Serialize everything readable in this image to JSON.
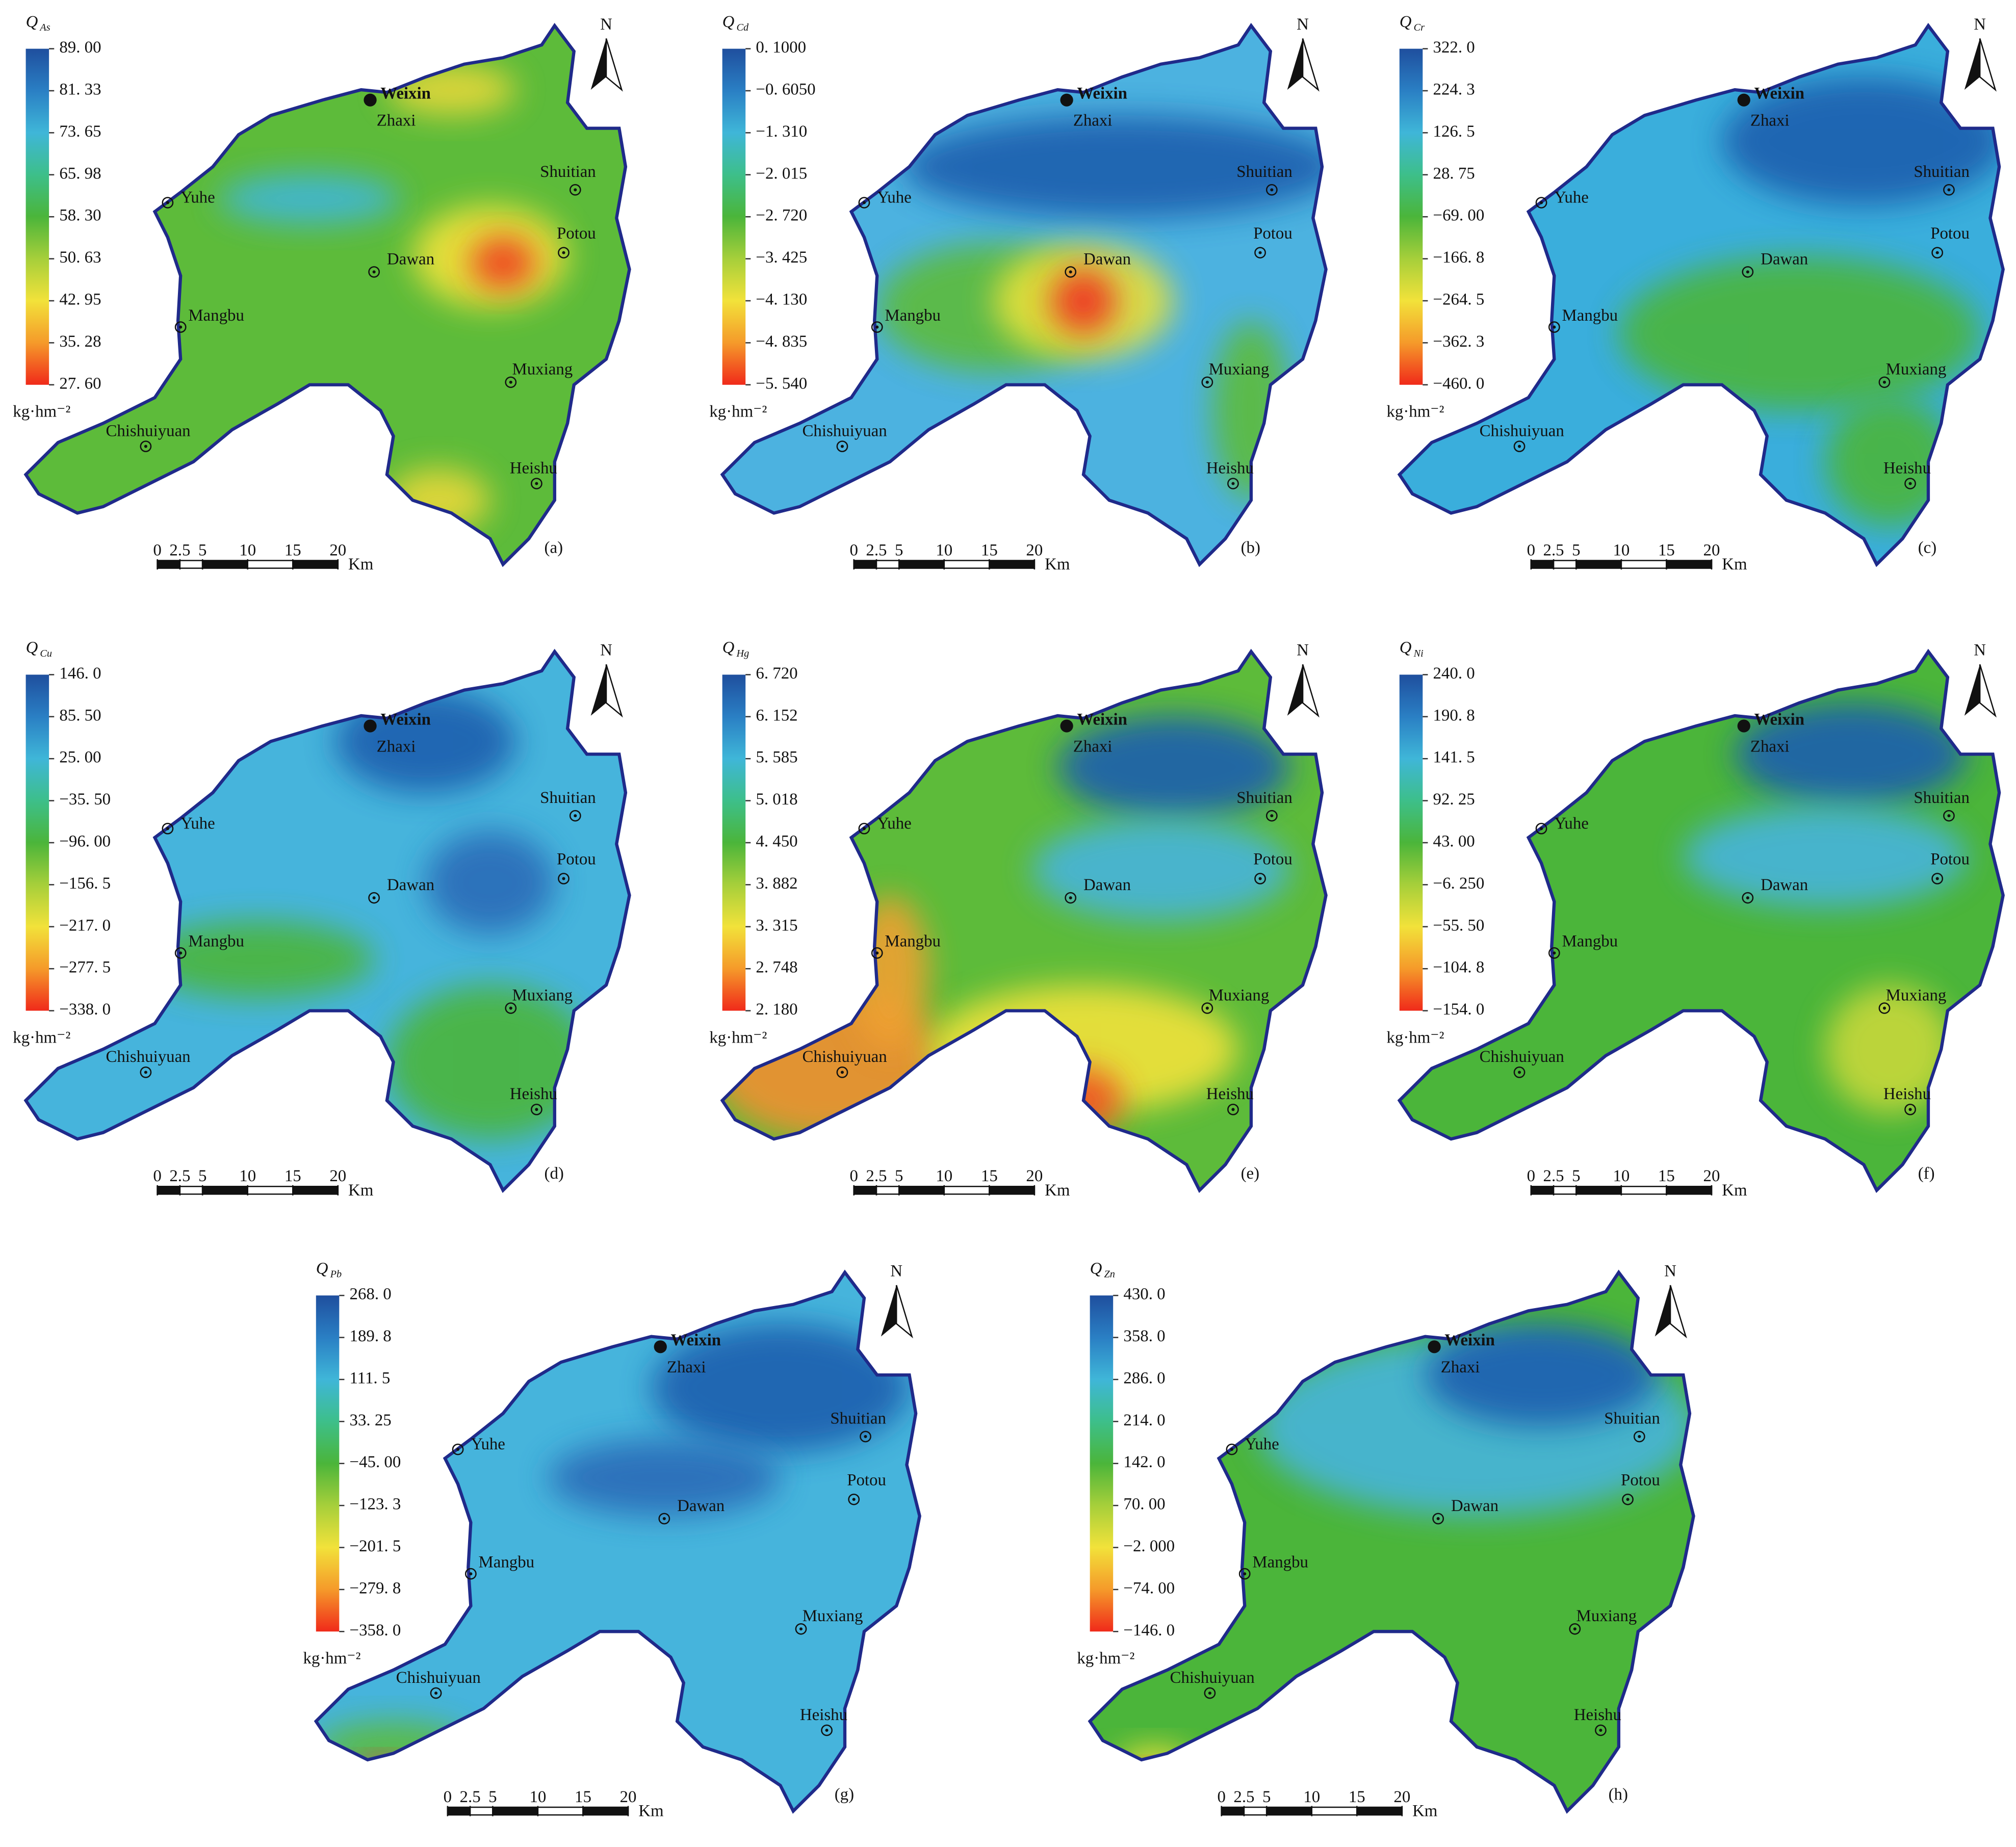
{
  "panels": [
    {
      "label": "(a)",
      "symbol": "Q",
      "subscript": "As",
      "legend_labels": [
        "89. 00",
        "81. 33",
        "73. 65",
        "65. 98",
        "58. 30",
        "50. 63",
        "42. 95",
        "35. 28",
        "27. 60"
      ]
    },
    {
      "label": "(b)",
      "symbol": "Q",
      "subscript": "Cd",
      "legend_labels": [
        "0. 1000",
        "−0. 6050",
        "−1. 310",
        "−2. 015",
        "−2. 720",
        "−3. 425",
        "−4. 130",
        "−4. 835",
        "−5. 540"
      ]
    },
    {
      "label": "(c)",
      "symbol": "Q",
      "subscript": "Cr",
      "legend_labels": [
        "322. 0",
        "224. 3",
        "126. 5",
        "28. 75",
        "−69. 00",
        "−166. 8",
        "−264. 5",
        "−362. 3",
        "−460. 0"
      ]
    },
    {
      "label": "(d)",
      "symbol": "Q",
      "subscript": "Cu",
      "legend_labels": [
        "146. 0",
        "85. 50",
        "25. 00",
        "−35. 50",
        "−96. 00",
        "−156. 5",
        "−217. 0",
        "−277. 5",
        "−338. 0"
      ]
    },
    {
      "label": "(e)",
      "symbol": "Q",
      "subscript": "Hg",
      "legend_labels": [
        "6. 720",
        "6. 152",
        "5. 585",
        "5. 018",
        "4. 450",
        "3. 882",
        "3. 315",
        "2. 748",
        "2. 180"
      ]
    },
    {
      "label": "(f)",
      "symbol": "Q",
      "subscript": "Ni",
      "legend_labels": [
        "240. 0",
        "190. 8",
        "141. 5",
        "92. 25",
        "43. 00",
        "−6. 250",
        "−55. 50",
        "−104. 8",
        "−154. 0"
      ]
    },
    {
      "label": "(g)",
      "symbol": "Q",
      "subscript": "Pb",
      "legend_labels": [
        "268. 0",
        "189. 8",
        "111. 5",
        "33. 25",
        "−45. 00",
        "−123. 3",
        "−201. 5",
        "−279. 8",
        "−358. 0"
      ]
    },
    {
      "label": "(h)",
      "symbol": "Q",
      "subscript": "Zn",
      "legend_labels": [
        "430. 0",
        "358. 0",
        "286. 0",
        "214. 0",
        "142. 0",
        "70. 00",
        "−2. 000",
        "−74. 00",
        "−146. 0"
      ]
    }
  ],
  "legend_unit": "kg·hm⁻²",
  "colormap": [
    "#1f4f9e",
    "#2a7fc4",
    "#3fb6d8",
    "#3dbf8a",
    "#4bb53a",
    "#a6cf3a",
    "#f2e23a",
    "#f59a2a",
    "#f02a1a"
  ],
  "places": [
    "Weixin",
    "Zhaxi",
    "Yuhe",
    "Shuitian",
    "Dawan",
    "Potou",
    "Mangbu",
    "Muxiang",
    "Chishuiyuan",
    "Heishu"
  ],
  "north": "N",
  "scale_bar": {
    "ticks": [
      0,
      2.5,
      5,
      10,
      15,
      20
    ],
    "unit": "Km"
  }
}
